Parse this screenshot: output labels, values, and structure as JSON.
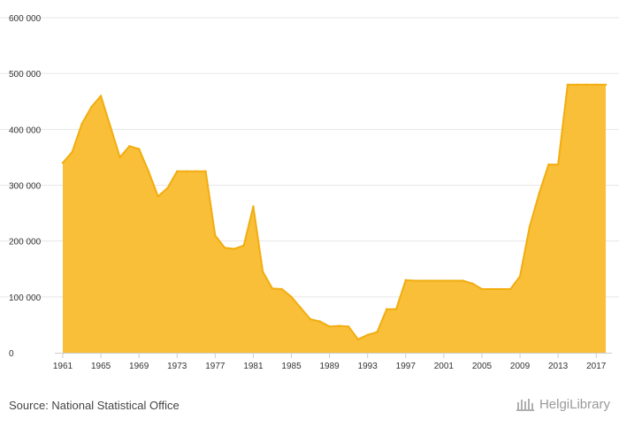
{
  "chart_data": {
    "type": "area",
    "title": "",
    "xlabel": "",
    "ylabel": "",
    "ylim": [
      0,
      600000
    ],
    "yticks": [
      0,
      100000,
      200000,
      300000,
      400000,
      500000,
      600000
    ],
    "ytick_labels": [
      "0",
      "100 000",
      "200 000",
      "300 000",
      "400 000",
      "500 000",
      "600 000"
    ],
    "xlim": [
      1961,
      2018
    ],
    "xticks": [
      1961,
      1965,
      1969,
      1973,
      1977,
      1981,
      1985,
      1989,
      1993,
      1997,
      2001,
      2005,
      2009,
      2013,
      2017
    ],
    "grid": true,
    "legend": "none",
    "color_fill": "#f9bf39",
    "color_line": "#f2ad0f",
    "x": [
      1961,
      1962,
      1963,
      1964,
      1965,
      1966,
      1967,
      1968,
      1969,
      1970,
      1971,
      1972,
      1973,
      1974,
      1975,
      1976,
      1977,
      1978,
      1979,
      1980,
      1981,
      1982,
      1983,
      1984,
      1985,
      1986,
      1987,
      1988,
      1989,
      1990,
      1991,
      1992,
      1993,
      1994,
      1995,
      1996,
      1997,
      1998,
      1999,
      2000,
      2001,
      2002,
      2003,
      2004,
      2005,
      2006,
      2007,
      2008,
      2009,
      2010,
      2011,
      2012,
      2013,
      2014,
      2015,
      2016,
      2017,
      2018
    ],
    "values": [
      340000,
      360000,
      410000,
      440000,
      460000,
      405000,
      350000,
      370000,
      365000,
      325000,
      280000,
      295000,
      325000,
      325000,
      325000,
      325000,
      210000,
      188000,
      186000,
      192000,
      262000,
      145000,
      115000,
      114000,
      100000,
      80000,
      60000,
      56000,
      47000,
      48000,
      47000,
      24000,
      32000,
      37000,
      78000,
      78000,
      130000,
      129000,
      129000,
      129000,
      129000,
      129000,
      129000,
      124000,
      114000,
      114000,
      114000,
      114000,
      137000,
      225000,
      285000,
      337000,
      337000,
      480000,
      480000,
      480000,
      480000,
      480000
    ]
  },
  "footer": {
    "source": "Source: National Statistical Office",
    "brand": "HelgiLibrary"
  }
}
